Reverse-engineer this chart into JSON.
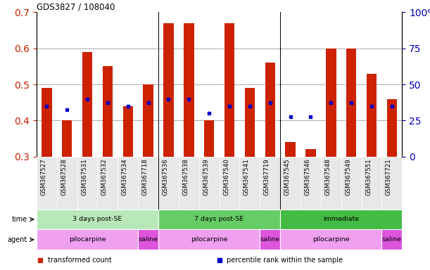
{
  "title": "GDS3827 / 108040",
  "samples": [
    "GSM367527",
    "GSM367528",
    "GSM367531",
    "GSM367532",
    "GSM367534",
    "GSM367718",
    "GSM367536",
    "GSM367538",
    "GSM367539",
    "GSM367540",
    "GSM367541",
    "GSM367719",
    "GSM367545",
    "GSM367546",
    "GSM367548",
    "GSM367549",
    "GSM367551",
    "GSM367721"
  ],
  "bar_values": [
    0.49,
    0.4,
    0.59,
    0.55,
    0.44,
    0.5,
    0.67,
    0.67,
    0.4,
    0.67,
    0.49,
    0.56,
    0.34,
    0.32,
    0.6,
    0.6,
    0.53,
    0.46
  ],
  "blue_dot_values": [
    0.44,
    0.43,
    0.46,
    0.45,
    0.44,
    0.45,
    0.46,
    0.46,
    0.42,
    0.44,
    0.44,
    0.45,
    0.41,
    0.41,
    0.45,
    0.45,
    0.44,
    0.44
  ],
  "bar_bottom": 0.3,
  "ylim": [
    0.3,
    0.7
  ],
  "yticks_left": [
    0.3,
    0.4,
    0.5,
    0.6,
    0.7
  ],
  "yticks_right": [
    0,
    25,
    50,
    75,
    100
  ],
  "bar_color": "#cc2200",
  "dot_color": "#0000cc",
  "time_groups": [
    {
      "label": "3 days post-SE",
      "start": 0,
      "end": 6,
      "color": "#b8e8b8"
    },
    {
      "label": "7 days post-SE",
      "start": 6,
      "end": 12,
      "color": "#66cc66"
    },
    {
      "label": "immediate",
      "start": 12,
      "end": 18,
      "color": "#44bb44"
    }
  ],
  "agent_groups": [
    {
      "label": "pilocarpine",
      "start": 0,
      "end": 5,
      "color": "#f0a0f0"
    },
    {
      "label": "saline",
      "start": 5,
      "end": 6,
      "color": "#dd55dd"
    },
    {
      "label": "pilocarpine",
      "start": 6,
      "end": 11,
      "color": "#f0a0f0"
    },
    {
      "label": "saline",
      "start": 11,
      "end": 12,
      "color": "#dd55dd"
    },
    {
      "label": "pilocarpine",
      "start": 12,
      "end": 17,
      "color": "#f0a0f0"
    },
    {
      "label": "saline",
      "start": 17,
      "end": 18,
      "color": "#dd55dd"
    }
  ],
  "legend_items": [
    {
      "label": "transformed count",
      "color": "#cc2200"
    },
    {
      "label": "percentile rank within the sample",
      "color": "#0000cc"
    }
  ]
}
